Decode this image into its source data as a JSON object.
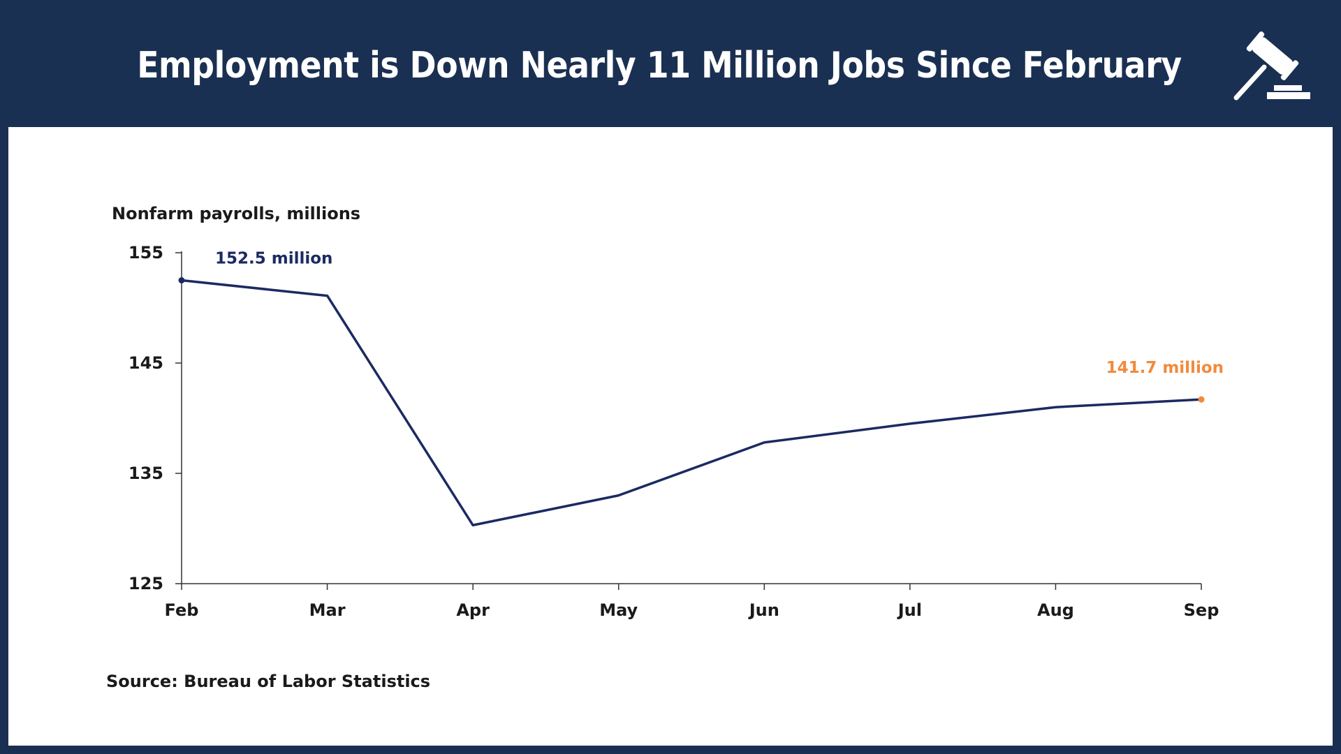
{
  "header": {
    "title": "Employment is Down Nearly 11 Million Jobs Since February",
    "icon": "gavel-icon"
  },
  "colors": {
    "background": "#1a3052",
    "line": "#1b2a62",
    "highlight": "#f28a3c",
    "panel": "#ffffff"
  },
  "chart_data": {
    "type": "line",
    "title": "Employment is Down Nearly 11 Million Jobs Since February",
    "ylabel": "Nonfarm payrolls, millions",
    "xlabel": "",
    "categories": [
      "Feb",
      "Mar",
      "Apr",
      "May",
      "Jun",
      "Jul",
      "Aug",
      "Sep"
    ],
    "series": [
      {
        "values": [
          152.5,
          151.1,
          130.3,
          133.0,
          137.8,
          139.5,
          141.0,
          141.7
        ]
      }
    ],
    "ylim": [
      125,
      155
    ],
    "yticks": [
      "155",
      "145",
      "135",
      "125"
    ],
    "annotations": [
      {
        "index": 0,
        "text": "152.5 million",
        "color": "#1b2a62"
      },
      {
        "index": 7,
        "text": "141.7 million",
        "color": "#f28a3c"
      }
    ],
    "grid": false,
    "legend": "none",
    "source": "Source: Bureau of Labor Statistics"
  }
}
